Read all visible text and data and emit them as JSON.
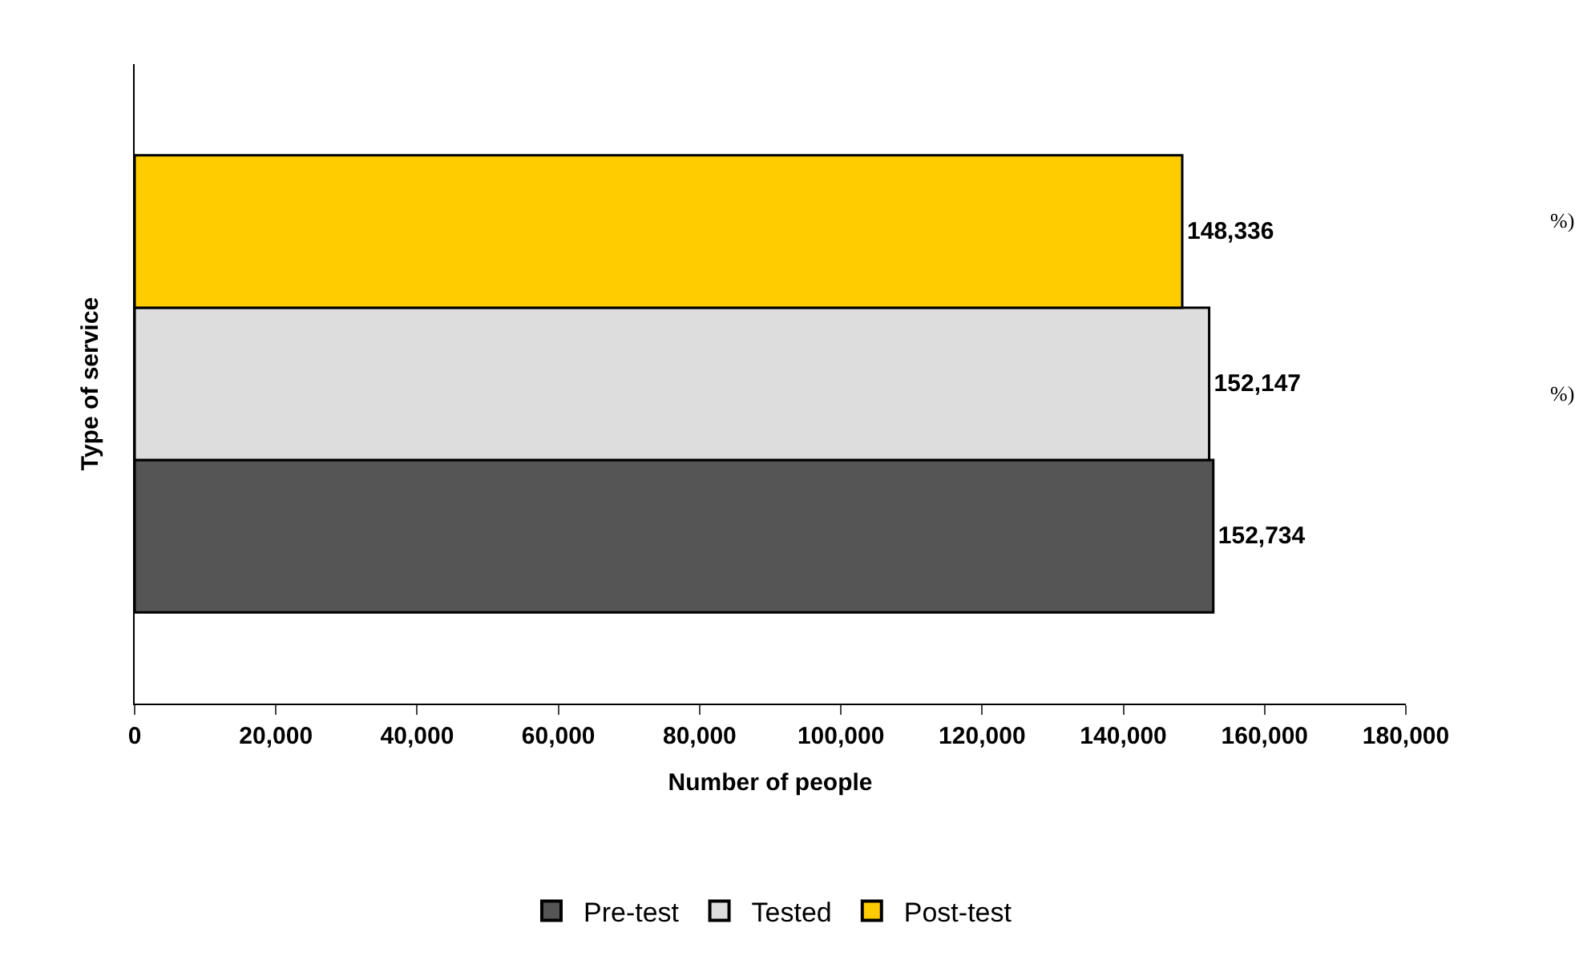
{
  "chart_data": {
    "type": "bar",
    "orientation": "horizontal",
    "ylabel": "Type of service",
    "xlabel": "Number of people",
    "categories": [
      null
    ],
    "series": [
      {
        "name": "Pre-test",
        "color": "#555555",
        "values": [
          152734
        ],
        "value_labels": [
          "152,734"
        ]
      },
      {
        "name": "Tested",
        "color": "#dddddd",
        "values": [
          152147
        ],
        "value_labels": [
          "152,147"
        ]
      },
      {
        "name": "Post-test",
        "color": "#ffcc00",
        "values": [
          148336
        ],
        "value_labels": [
          "148,336"
        ]
      }
    ],
    "xlim": [
      0,
      180000
    ],
    "xticks": [
      0,
      {
        "value": 20000,
        "label": "20,000"
      },
      {
        "value": 40000,
        "label": "40,000"
      },
      {
        "value": 60000,
        "label": "60,000"
      },
      {
        "value": 80000,
        "label": "80,000"
      },
      {
        "value": 100000,
        "label": "100,000"
      },
      {
        "value": 120000,
        "label": "120,000"
      },
      {
        "value": 140000,
        "label": "140,000"
      },
      {
        "value": 160000,
        "label": "160,000"
      },
      {
        "value": 180000,
        "label": "180,000"
      }
    ],
    "legend": "bottom",
    "grid": false,
    "annotations": [
      "%)",
      "%)"
    ]
  }
}
